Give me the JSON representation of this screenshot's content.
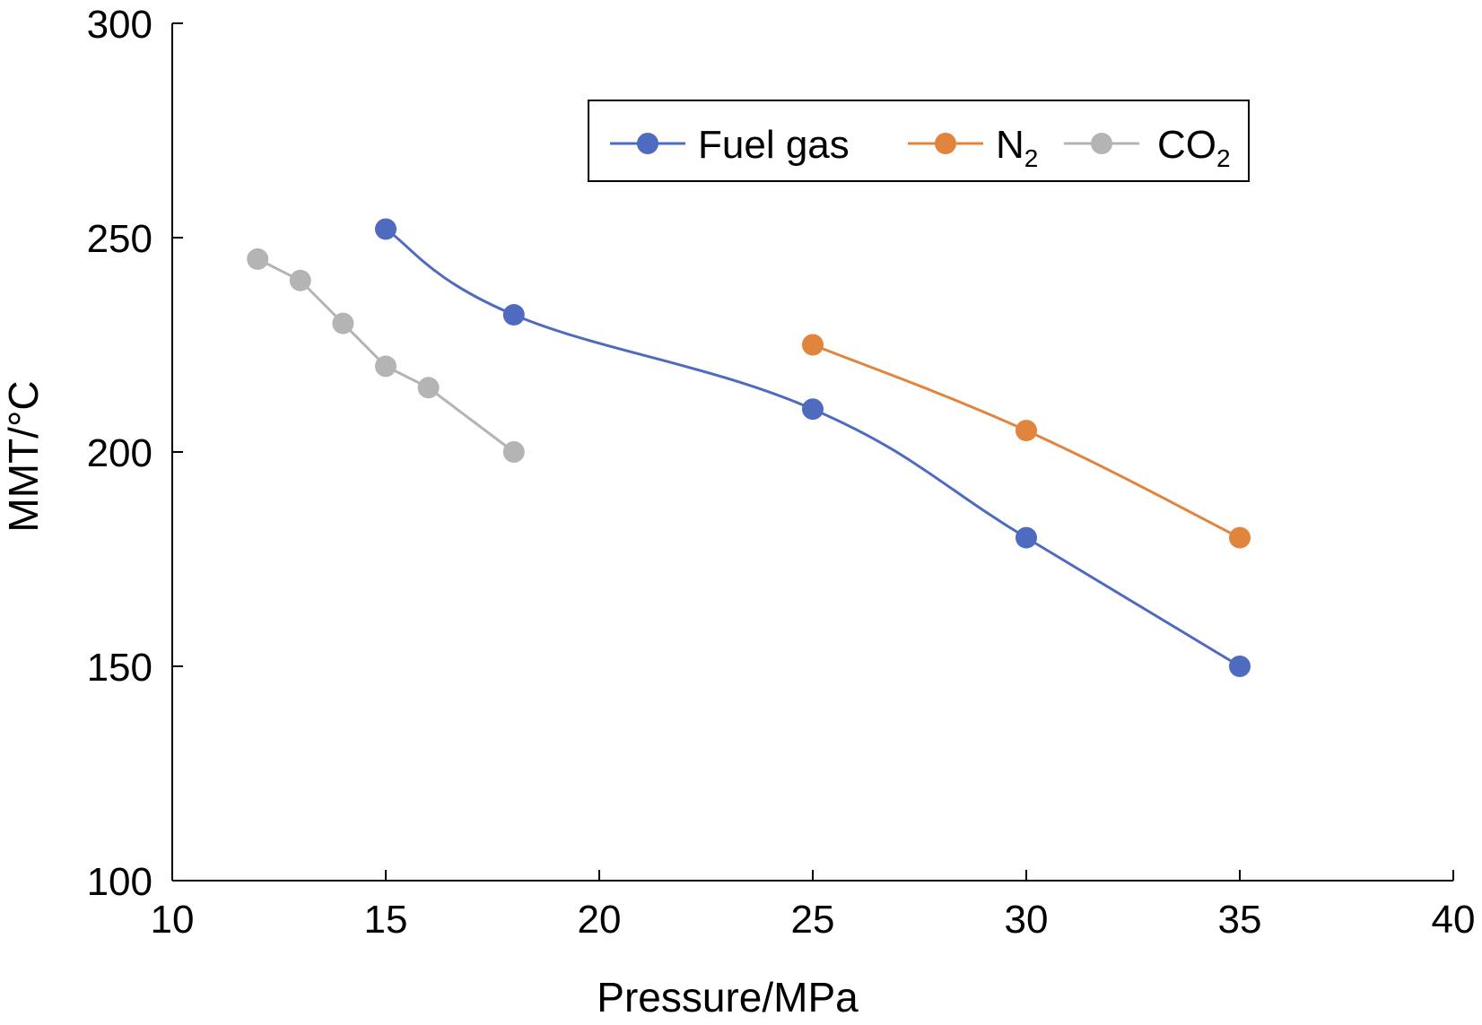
{
  "chart_data": {
    "type": "line",
    "title": "",
    "xlabel": "Pressure/MPa",
    "ylabel": "MMT/°C",
    "xlim": [
      10,
      40
    ],
    "ylim": [
      100,
      300
    ],
    "xticks": [
      10,
      15,
      20,
      25,
      30,
      35,
      40
    ],
    "yticks": [
      100,
      150,
      200,
      250,
      300
    ],
    "grid": false,
    "legend_position": "top-right",
    "series": [
      {
        "name": "Fuel gas",
        "name_main": "Fuel gas",
        "name_sub": "",
        "color": "#4F6BBF",
        "smooth": true,
        "x": [
          15,
          18,
          25,
          30,
          35
        ],
        "y": [
          252,
          232,
          210,
          180,
          150
        ]
      },
      {
        "name": "N2",
        "name_main": "N",
        "name_sub": "2",
        "color": "#E0843E",
        "smooth": true,
        "x": [
          25,
          30,
          35
        ],
        "y": [
          225,
          205,
          180
        ]
      },
      {
        "name": "CO2",
        "name_main": "CO",
        "name_sub": "2",
        "color": "#B4B4B4",
        "smooth": false,
        "x": [
          12,
          13,
          14,
          15,
          16,
          18
        ],
        "y": [
          245,
          240,
          230,
          220,
          215,
          200
        ]
      }
    ]
  }
}
